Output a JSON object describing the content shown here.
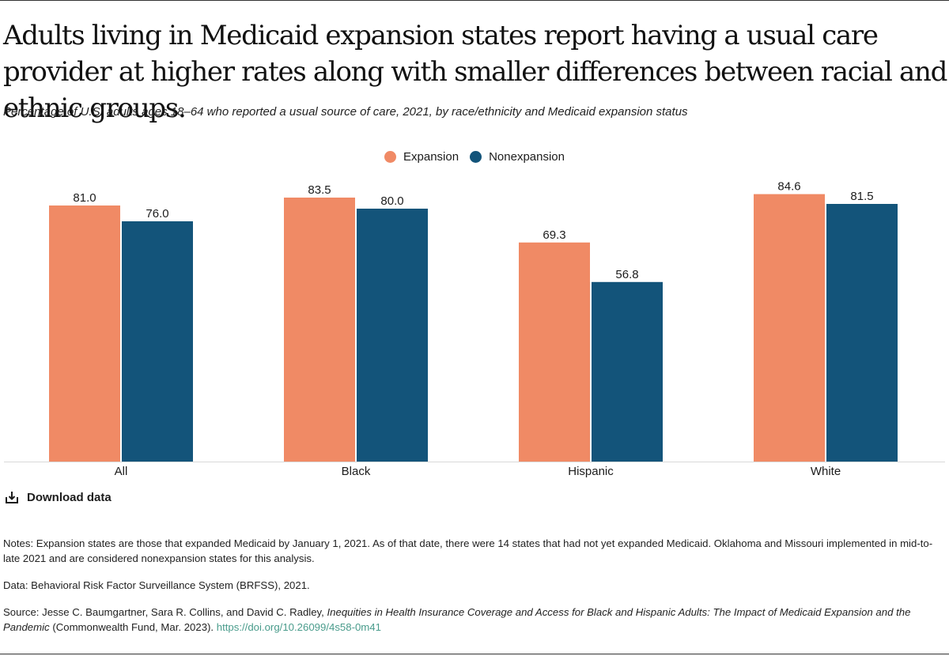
{
  "title": "Adults living in Medicaid expansion states report having a usual care provider at higher rates along with smaller differences between racial and ethnic groups.",
  "subtitle": "Percentage of U.S. adults ages 18–64 who reported a usual source of care, 2021, by race/ethnicity and Medicaid expansion status",
  "legend": [
    {
      "label": "Expansion",
      "color": "#f08a65"
    },
    {
      "label": "Nonexpansion",
      "color": "#13547a"
    }
  ],
  "download_label": "Download data",
  "notes": "Notes: Expansion states are those that expanded Medicaid by January 1, 2021. As of that date, there were 14 states that had not yet expanded Medicaid. Oklahoma and Missouri implemented in mid-to-late 2021 and are considered nonexpansion states for this analysis.",
  "data_source": "Data: Behavioral Risk Factor Surveillance System (BRFSS), 2021.",
  "source": {
    "prefix": "Source: Jesse C. Baumgartner, Sara R. Collins, and David C. Radley, ",
    "title": "Inequities in Health Insurance Coverage and Access for Black and Hispanic Adults: The Impact of Medicaid Expansion and the Pandemic",
    "suffix": " (Commonwealth Fund, Mar. 2023). ",
    "link": "https://doi.org/10.26099/4s58-0m41"
  },
  "chart_data": {
    "type": "bar",
    "title": "Adults living in Medicaid expansion states report having a usual care provider at higher rates along with smaller differences between racial and ethnic groups.",
    "categories": [
      "All",
      "Black",
      "Hispanic",
      "White"
    ],
    "series": [
      {
        "name": "Expansion",
        "color": "#f08a65",
        "values": [
          81.0,
          83.5,
          69.3,
          84.6
        ]
      },
      {
        "name": "Nonexpansion",
        "color": "#13547a",
        "values": [
          76.0,
          80.0,
          56.8,
          81.5
        ]
      }
    ],
    "xlabel": "",
    "ylabel": "",
    "ylim": [
      0,
      100
    ],
    "grid": false,
    "legend_position": "top-center"
  }
}
